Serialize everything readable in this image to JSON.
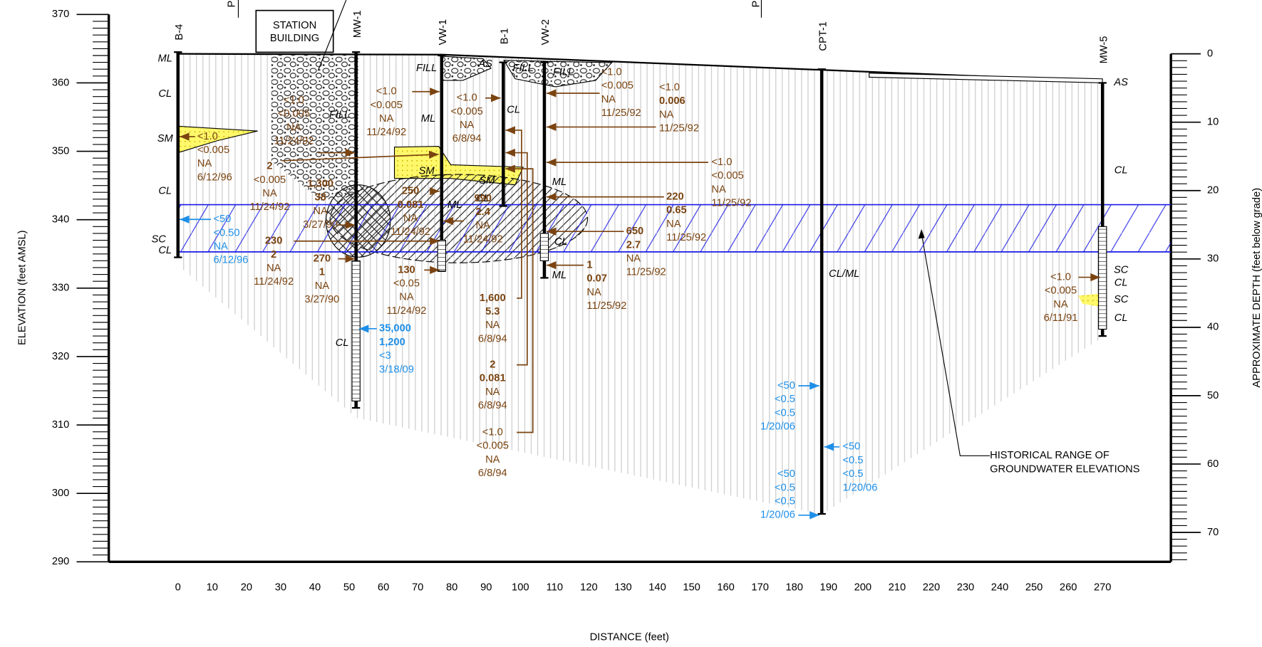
{
  "chart_data": {
    "type": "cross-section",
    "xlabel": "DISTANCE (feet)",
    "ylabel": "ELEVATION (feet AMSL)",
    "y2label": "APPROXIMATE DEPTH (feet below grade)",
    "xlim": [
      0,
      270
    ],
    "xticks": [
      0,
      10,
      20,
      30,
      40,
      50,
      60,
      70,
      80,
      90,
      100,
      110,
      120,
      130,
      140,
      150,
      160,
      170,
      180,
      190,
      200,
      210,
      220,
      230,
      240,
      250,
      260,
      270
    ],
    "ylim": [
      290,
      370
    ],
    "yticks": [
      290,
      300,
      310,
      320,
      330,
      340,
      350,
      360,
      370
    ],
    "y2lim": [
      0,
      74.3
    ],
    "y2ticks": [
      0,
      10,
      20,
      30,
      40,
      50,
      60,
      70
    ],
    "groundwater": {
      "high": 342.2,
      "low": 335.3,
      "color": "#1a1ae6"
    },
    "borings": [
      {
        "name": "B-4",
        "x": 0,
        "top": 364.5,
        "bottom": 334.5
      },
      {
        "name": "MW-1",
        "x": 52,
        "top": 364.5,
        "bottom": 312.5
      },
      {
        "name": "VW-1",
        "x": 77,
        "top": 364,
        "bottom": 332.5
      },
      {
        "name": "B-1",
        "x": 95,
        "top": 363,
        "bottom": 342
      },
      {
        "name": "VW-2",
        "x": 107,
        "top": 363,
        "bottom": 331.5
      },
      {
        "name": "CPT-1",
        "x": 188,
        "top": 362,
        "bottom": 297
      },
      {
        "name": "MW-5",
        "x": 270,
        "top": 360,
        "bottom": 323
      }
    ],
    "soil_labels": [
      "ML",
      "CL",
      "SM",
      "CL",
      "SC",
      "CL",
      "FILL",
      "CL",
      "FILL",
      "ML",
      "SM",
      "ML",
      "AS",
      "FILL",
      "CL",
      "SM",
      "CL",
      "FILL",
      "ML",
      "CL",
      "ML",
      "CL/ML",
      "AS",
      "CL",
      "SC",
      "CL",
      "SC",
      "CL"
    ],
    "building": [
      "STATION",
      "BUILDING"
    ],
    "markers": [
      "P",
      "P"
    ],
    "callout": [
      "HISTORICAL RANGE OF",
      "GROUNDWATER ELEVATIONS"
    ],
    "annotations": [
      {
        "color": "#7a4310",
        "lines": [
          "<1.0",
          "<0.005",
          "NA",
          "6/12/96"
        ]
      },
      {
        "color": "#7a4310",
        "lines": [
          "<1.0",
          "<0.005",
          "NA",
          "11/24/92"
        ]
      },
      {
        "color": "#7a4310",
        "lines": [
          "2",
          "<0.005",
          "NA",
          "11/24/92"
        ]
      },
      {
        "color": "#7a4310",
        "lines": [
          "1,300",
          "38",
          "NA",
          "3/27/90"
        ]
      },
      {
        "color": "#7a4310",
        "lines": [
          "230",
          "2",
          "NA",
          "11/24/92"
        ]
      },
      {
        "color": "#7a4310",
        "lines": [
          "270",
          "1",
          "NA",
          "3/27/90"
        ]
      },
      {
        "color": "#1e8fe8",
        "lines": [
          "<50",
          "<0.50",
          "NA",
          "6/12/96"
        ]
      },
      {
        "color": "#1e8fe8",
        "lines": [
          "35,000",
          "1,200",
          "<3",
          "3/18/09"
        ]
      },
      {
        "color": "#7a4310",
        "lines": [
          "<1.0",
          "<0.005",
          "NA",
          "11/24/92"
        ]
      },
      {
        "color": "#7a4310",
        "lines": [
          "250",
          "0.081",
          "NA",
          "11/24/92"
        ]
      },
      {
        "color": "#7a4310",
        "lines": [
          "990",
          "2.4",
          "NA",
          "11/24/92"
        ]
      },
      {
        "color": "#7a4310",
        "lines": [
          "130",
          "<0.05",
          "NA",
          "11/24/92"
        ]
      },
      {
        "color": "#7a4310",
        "lines": [
          "<1.0",
          "<0.005",
          "NA",
          "6/8/94"
        ]
      },
      {
        "color": "#7a4310",
        "lines": [
          "1,600",
          "5.3",
          "NA",
          "6/8/94"
        ]
      },
      {
        "color": "#7a4310",
        "lines": [
          "2",
          "0.081",
          "NA",
          "6/8/94"
        ]
      },
      {
        "color": "#7a4310",
        "lines": [
          "<1.0",
          "<0.005",
          "NA",
          "6/8/94"
        ]
      },
      {
        "color": "#7a4310",
        "lines": [
          "<1.0",
          "<0.005",
          "NA",
          "11/25/92"
        ]
      },
      {
        "color": "#7a4310",
        "lines": [
          "<1.0",
          "0.006",
          "NA",
          "11/25/92"
        ]
      },
      {
        "color": "#7a4310",
        "lines": [
          "<1.0",
          "<0.005",
          "NA",
          "11/25/92"
        ]
      },
      {
        "color": "#7a4310",
        "lines": [
          "220",
          "0.65",
          "NA",
          "11/25/92"
        ]
      },
      {
        "color": "#7a4310",
        "lines": [
          "650",
          "2.7",
          "NA",
          "11/25/92"
        ]
      },
      {
        "color": "#7a4310",
        "lines": [
          "1",
          "0.07",
          "NA",
          "11/25/92"
        ]
      },
      {
        "color": "#1e8fe8",
        "lines": [
          "<50",
          "<0.5",
          "<0.5",
          "1/20/06"
        ]
      },
      {
        "color": "#1e8fe8",
        "lines": [
          "<50",
          "<0.5",
          "<0.5",
          "1/20/06"
        ]
      },
      {
        "color": "#1e8fe8",
        "lines": [
          "<50",
          "<0.5",
          "<0.5",
          "1/20/06"
        ]
      },
      {
        "color": "#7a4310",
        "lines": [
          "<1.0",
          "<0.005",
          "NA",
          "6/11/91"
        ]
      }
    ]
  }
}
